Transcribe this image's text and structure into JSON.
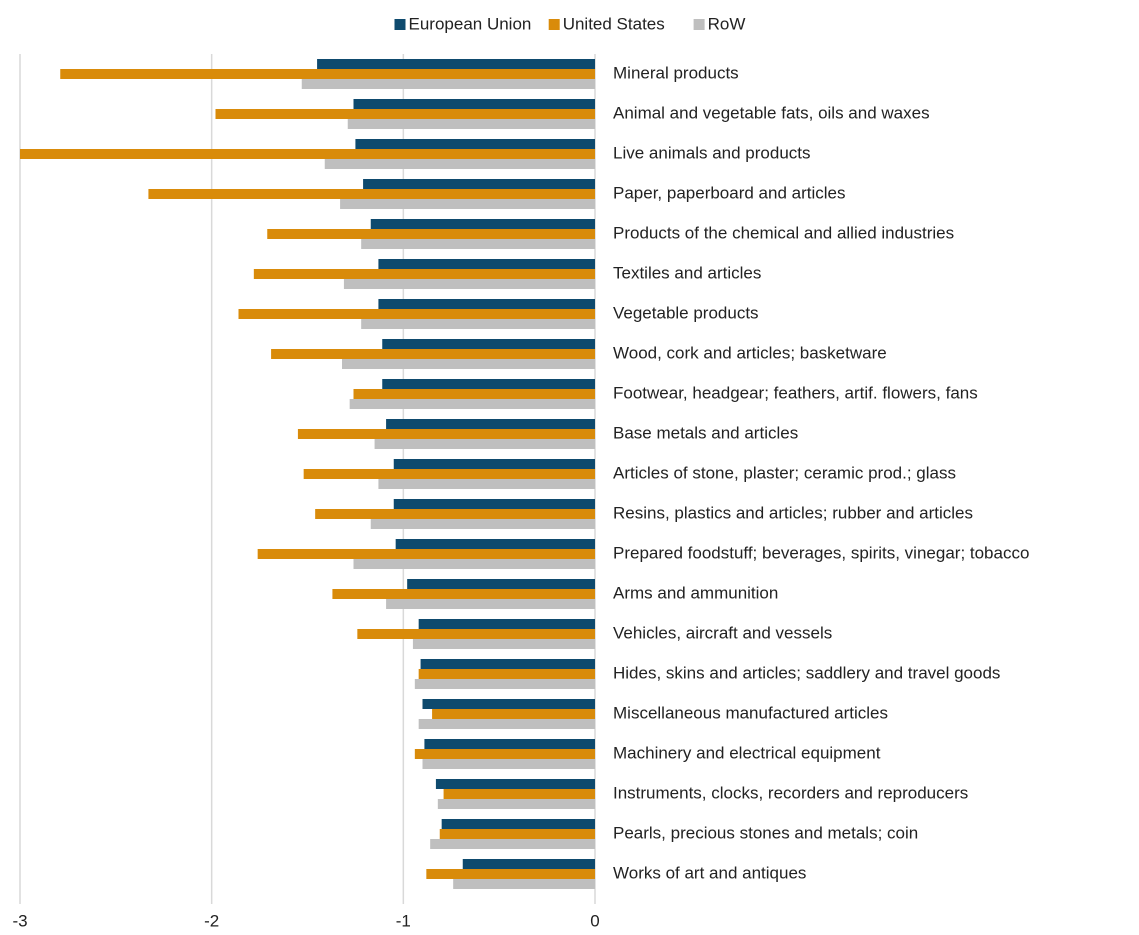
{
  "chart_data": {
    "type": "hbar",
    "categories": [
      "Mineral products",
      "Animal and vegetable fats, oils and waxes",
      "Live animals and products",
      "Paper, paperboard and articles",
      "Products of the chemical and allied industries",
      "Textiles and articles",
      "Vegetable products",
      "Wood, cork and articles; basketware",
      "Footwear, headgear; feathers, artif. flowers, fans",
      "Base metals and articles",
      "Articles of stone, plaster; ceramic prod.; glass",
      "Resins, plastics and articles; rubber and articles",
      "Prepared foodstuff; beverages, spirits, vinegar; tobacco",
      "Arms and ammunition",
      "Vehicles, aircraft and vessels",
      "Hides, skins and articles; saddlery and travel goods",
      "Miscellaneous manufactured articles",
      "Machinery and electrical equipment",
      "Instruments, clocks, recorders and reproducers",
      "Pearls, precious stones and metals; coin",
      "Works of art and antiques"
    ],
    "series": [
      {
        "name": "European Union",
        "color": "#0e4a6e",
        "values": [
          -1.45,
          -1.26,
          -1.25,
          -1.21,
          -1.17,
          -1.13,
          -1.13,
          -1.11,
          -1.11,
          -1.09,
          -1.05,
          -1.05,
          -1.04,
          -0.98,
          -0.92,
          -0.91,
          -0.9,
          -0.89,
          -0.83,
          -0.8,
          -0.69
        ]
      },
      {
        "name": "United States",
        "color": "#d98b0a",
        "values": [
          -2.79,
          -1.98,
          -3.0,
          -2.33,
          -1.71,
          -1.78,
          -1.86,
          -1.69,
          -1.26,
          -1.55,
          -1.52,
          -1.46,
          -1.76,
          -1.37,
          -1.24,
          -0.92,
          -0.85,
          -0.94,
          -0.79,
          -0.81,
          -0.88
        ]
      },
      {
        "name": "RoW",
        "color": "#bfbfbf",
        "values": [
          -1.53,
          -1.29,
          -1.41,
          -1.33,
          -1.22,
          -1.31,
          -1.22,
          -1.32,
          -1.28,
          -1.15,
          -1.13,
          -1.17,
          -1.26,
          -1.09,
          -0.95,
          -0.94,
          -0.92,
          -0.9,
          -0.82,
          -0.86,
          -0.74
        ]
      }
    ],
    "xlim": [
      -3,
      0
    ],
    "xticks": [
      -3,
      -2,
      -1,
      0
    ],
    "grid": true,
    "legend": "top"
  }
}
